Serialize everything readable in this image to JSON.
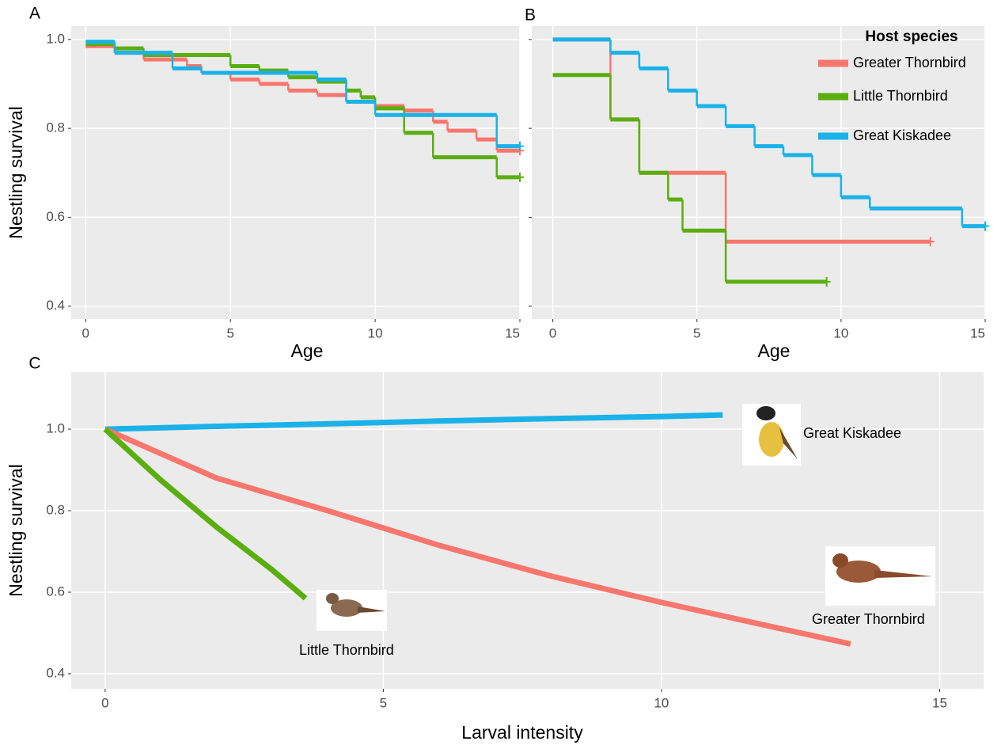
{
  "chart_data": [
    {
      "type": "step",
      "panel_label": "A",
      "xlabel": "Age",
      "ylabel": "Nestling survival",
      "xlim": [
        -0.5,
        15
      ],
      "ylim": [
        0.371,
        1.03
      ],
      "xticks": [
        0,
        5,
        10,
        15
      ],
      "yticks": [
        0.4,
        0.6,
        0.8,
        {
          "value": 1,
          "label": "1.0"
        }
      ],
      "grid": true,
      "series": [
        {
          "name": "Greater Thornbird",
          "color": "#f8766d",
          "x": [
            0,
            1,
            2,
            3.5,
            4,
            5,
            6,
            7,
            8,
            9,
            10,
            11,
            12,
            12.5,
            13.5,
            14.2,
            15
          ],
          "values": [
            0.985,
            0.97,
            0.955,
            0.94,
            0.925,
            0.91,
            0.9,
            0.885,
            0.875,
            0.86,
            0.85,
            0.84,
            0.815,
            0.795,
            0.775,
            0.75,
            0.75
          ]
        },
        {
          "name": "Little Thornbird",
          "color": "#5aae0f",
          "x": [
            0,
            1,
            2,
            5,
            6,
            7,
            8,
            9,
            9.5,
            10,
            11,
            12,
            14.2,
            15
          ],
          "values": [
            0.99,
            0.98,
            0.965,
            0.94,
            0.93,
            0.915,
            0.905,
            0.885,
            0.87,
            0.845,
            0.79,
            0.735,
            0.69,
            0.69
          ]
        },
        {
          "name": "Great Kiskadee",
          "color": "#1ab2e8",
          "x": [
            0,
            1,
            3,
            4,
            8,
            9,
            10,
            14.2,
            15
          ],
          "values": [
            0.995,
            0.97,
            0.935,
            0.925,
            0.91,
            0.86,
            0.83,
            0.76,
            0.76
          ]
        }
      ]
    },
    {
      "type": "step",
      "panel_label": "B",
      "xlabel": "Age",
      "xlim": [
        -0.73,
        15
      ],
      "ylim": [
        0.371,
        1.03
      ],
      "xticks": [
        0,
        5,
        10,
        15
      ],
      "yticks": [
        0.4,
        0.6,
        0.8,
        1
      ],
      "ytick_labels": false,
      "grid": true,
      "legend": {
        "title": "Host species",
        "position": "top-right"
      },
      "series": [
        {
          "name": "Greater Thornbird",
          "color": "#f8766d",
          "x": [
            0,
            2,
            3,
            6,
            13.1
          ],
          "values": [
            1.0,
            0.82,
            0.7,
            0.545,
            0.545
          ]
        },
        {
          "name": "Little Thornbird",
          "color": "#5aae0f",
          "x": [
            0,
            2,
            3,
            4,
            4.5,
            6,
            9.5
          ],
          "values": [
            0.92,
            0.82,
            0.7,
            0.64,
            0.57,
            0.455,
            0.455
          ]
        },
        {
          "name": "Great Kiskadee",
          "color": "#1ab2e8",
          "x": [
            0,
            2,
            3,
            4,
            5,
            6,
            7,
            8,
            9,
            10,
            11,
            14.2,
            15
          ],
          "values": [
            1.0,
            0.97,
            0.935,
            0.885,
            0.85,
            0.805,
            0.76,
            0.74,
            0.695,
            0.645,
            0.62,
            0.58,
            0.58
          ]
        }
      ]
    },
    {
      "type": "line",
      "panel_label": "C",
      "xlabel": "Larval intensity",
      "ylabel": "Nestling survival",
      "xlim": [
        -0.61,
        15.79
      ],
      "ylim": [
        0.363,
        1.14
      ],
      "xticks": [
        0,
        5,
        10,
        15
      ],
      "yticks": [
        0.4,
        0.6,
        0.8,
        {
          "value": 1,
          "label": "1.0"
        }
      ],
      "grid": true,
      "series": [
        {
          "name": "Great Kiskadee",
          "color": "#1ab2e8",
          "x": [
            0,
            2,
            4,
            6,
            8,
            10,
            11.1
          ],
          "values": [
            1.0,
            1.007,
            1.013,
            1.02,
            1.026,
            1.031,
            1.035
          ]
        },
        {
          "name": "Greater Thornbird",
          "color": "#f8766d",
          "x": [
            0,
            2,
            4,
            6,
            8,
            10,
            12,
            13.4
          ],
          "values": [
            1.0,
            0.88,
            0.8,
            0.715,
            0.64,
            0.575,
            0.515,
            0.473
          ]
        },
        {
          "name": "Little Thornbird",
          "color": "#5aae0f",
          "x": [
            0,
            1,
            2,
            3,
            3.6
          ],
          "values": [
            1.0,
            0.875,
            0.76,
            0.655,
            0.585
          ]
        }
      ],
      "annotations": [
        "Great Kiskadee",
        "Greater Thornbird",
        "Little Thornbird"
      ]
    }
  ]
}
